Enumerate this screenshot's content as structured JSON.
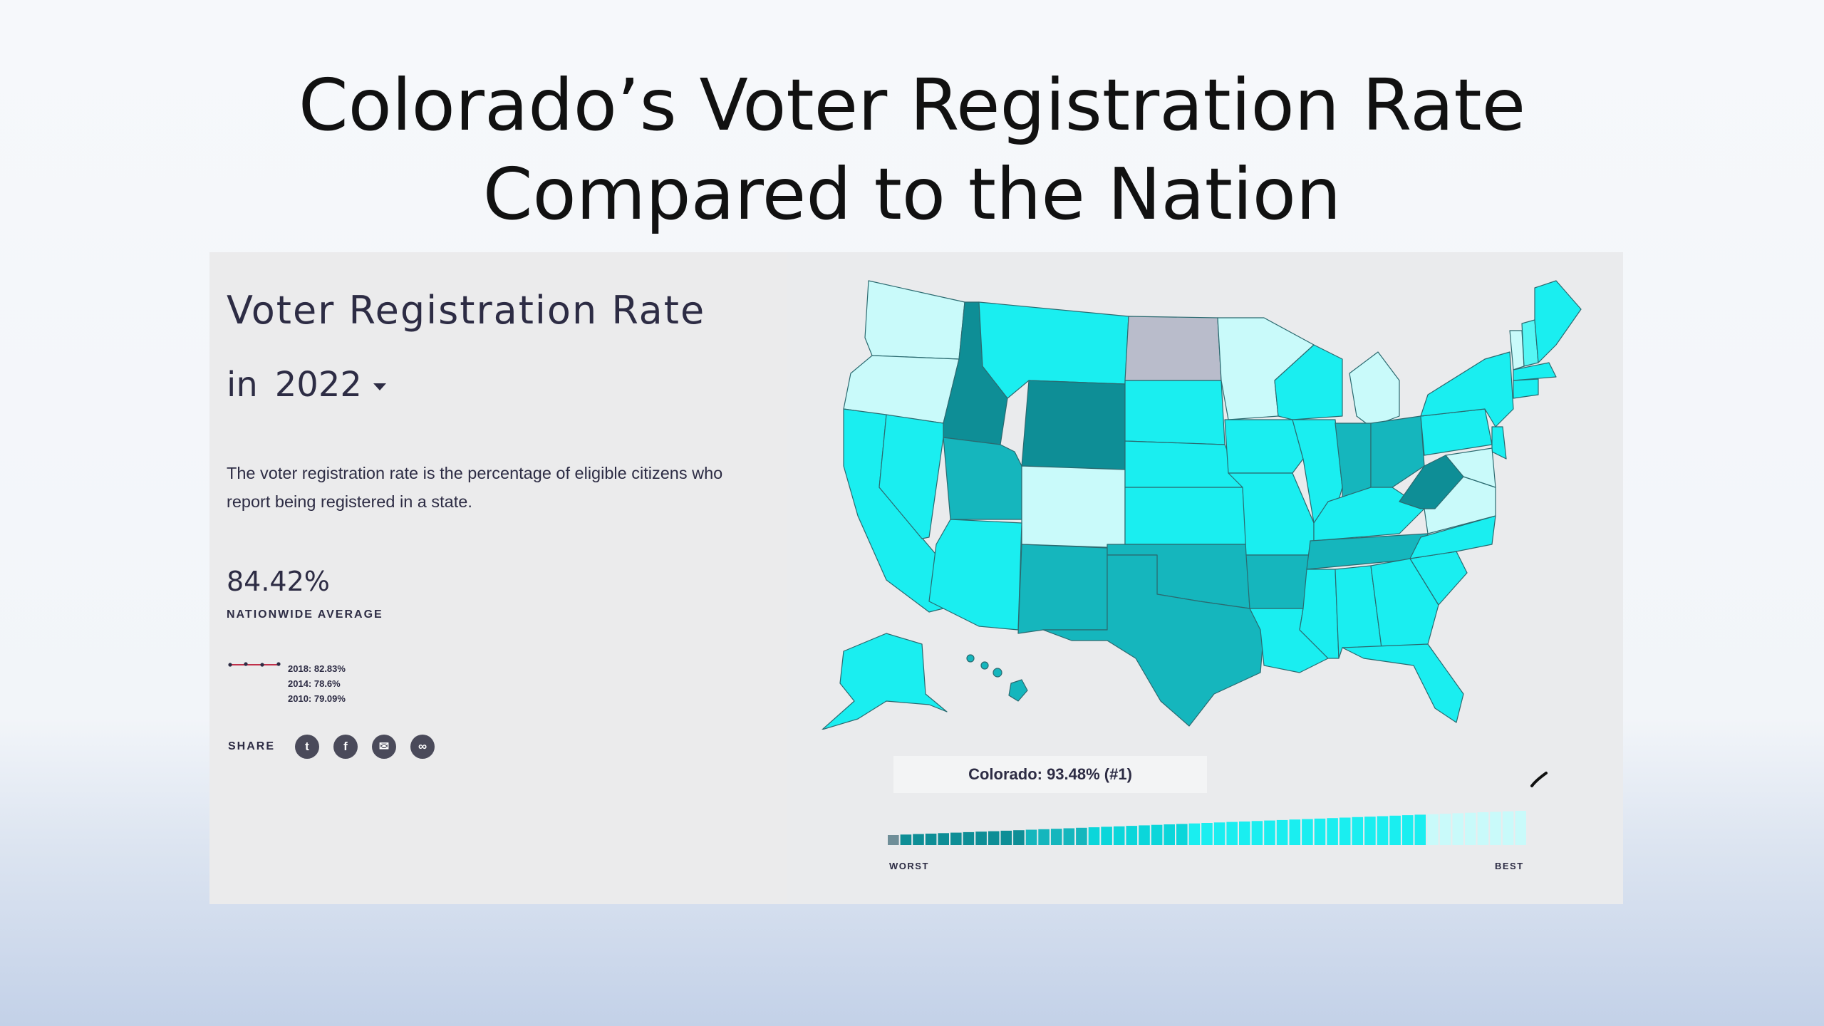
{
  "slide": {
    "title_line1": "Colorado’s Voter Registration Rate",
    "title_line2": "Compared to the Nation"
  },
  "panel": {
    "heading": "Voter Registration Rate",
    "year_prefix": "in",
    "year": "2022",
    "description": "The voter registration rate is the percentage of eligible citizens who report being registered in a state.",
    "nationwide_average": "84.42%",
    "nationwide_label": "NATIONWIDE AVERAGE",
    "history": [
      {
        "text": "2018:  82.83%"
      },
      {
        "text": "2014:  78.6%"
      },
      {
        "text": "2010:  79.09%"
      }
    ],
    "share_label": "SHARE",
    "share_buttons": [
      {
        "name": "twitter-icon",
        "glyph": "t"
      },
      {
        "name": "facebook-icon",
        "glyph": "f"
      },
      {
        "name": "email-icon",
        "glyph": "✉"
      },
      {
        "name": "link-icon",
        "glyph": "∞"
      }
    ]
  },
  "map": {
    "tooltip": "Colorado: 93.48% (#1)",
    "worst_label": "WORST",
    "best_label": "BEST",
    "colors": {
      "lowest": "#6f8e98",
      "low": "#0e8e96",
      "mid_low": "#15b6bd",
      "mid": "#0bd6da",
      "high": "#1aeef0",
      "higher": "#55f6f4",
      "highest": "#c9fafa",
      "no_data": "#b9bccb"
    }
  }
}
